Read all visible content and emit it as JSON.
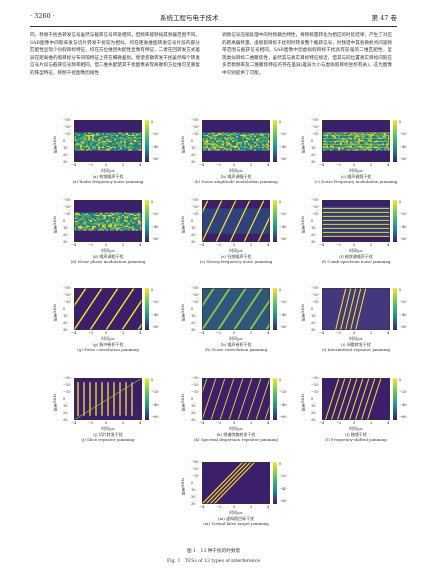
{
  "header": {
    "page": "· 3260 ·",
    "journal": "系统工程与电子技术",
    "volume": "第 47 卷"
  },
  "body_text": {
    "left": "同，移频干扰各转发信号虽然与截获信号带宽相同，但频率能够按其频偏范围不同。SAR图像中间歇采发与切片转发干扰较为相似，均在距离维图转发信号片段的部分匹配性呈现少份假目标特征，均在方位维因失配性显像有特征，二者在回转发方式差异在距离维的假目标分布间隔特征上存在细微差别。频谱弥散转发干扰虽然每个转发信号片段与截获信号频率相同，但二维失配使其干扰图像表现离散和方位维可见重复的阵型特征，移频干扰图像因线性",
    "right": "调频信号压缩处理中的时频耦合特性，将移频量转化为相应的时延结果，产生了对应的距离偏移量。虚假假目标干扰则时转发整个截获信号，时频谱中其各微射点间波频带范围与截获信号相同。SAR图像中因虚拟假目标干扰具有较强的二维匹配性，呈现类似目标二维聚焦性，虽然其与真实目标特征接近，但其与同位置真实目标间就在多普勒频率及二维聚焦特征的存在差异(差异大小与虚拟假目标坐标有关)，这为图像中识别提供了可能。"
  },
  "figure": {
    "ylabel": "频率/MHz",
    "xlabel": "时间/μs",
    "yticks": [
      "−30",
      "−20",
      "−10",
      "0",
      "10",
      "20",
      "30"
    ],
    "xticks": [
      "−4",
      "−2",
      "0",
      "2",
      "4"
    ],
    "cticks": [
      "0",
      "−20",
      "−40",
      "−60"
    ],
    "panels": [
      {
        "zh": "(a) 射频噪声干扰",
        "en": "(a) Radio frequency noise jamming",
        "pattern": "noise"
      },
      {
        "zh": "(b) 噪声调幅干扰",
        "en": "(b) Noise amplitude modulation jamming",
        "pattern": "noise"
      },
      {
        "zh": "(c) 噪声调频干扰",
        "en": "(c) Noise frequency modulation jamming",
        "pattern": "noise_fm"
      },
      {
        "zh": "(d) 噪声调相干扰",
        "en": "(d) Noise phase modulation jamming",
        "pattern": "noise"
      },
      {
        "zh": "(e) 扫频噪声干扰",
        "en": "(e) Sweep frequency noise jamming",
        "pattern": "sweep"
      },
      {
        "zh": "(f) 梳状谱噪声干扰",
        "en": "(f) Comb spectrum noise jamming",
        "pattern": "comb"
      },
      {
        "zh": "(g) 脉冲卷积干扰",
        "en": "(g) Pulse convolution jamming",
        "pattern": "pulse"
      },
      {
        "zh": "(h) 噪声卷积干扰",
        "en": "(h) Noise convolution jamming",
        "pattern": "noiseconv"
      },
      {
        "zh": "(i) 间歇转发干扰",
        "en": "(i) Intermittent repeater jamming",
        "pattern": "intermittent"
      },
      {
        "zh": "(j) 切片转发干扰",
        "en": "(j) Slice repeater jamming",
        "pattern": "slice"
      },
      {
        "zh": "(k) 频谱弥散转发干扰",
        "en": "(k) Spectral dispersion repeater jamming",
        "pattern": "dispersion"
      },
      {
        "zh": "(l) 移频干扰",
        "en": "(l) Frequency-shifted jamming",
        "pattern": "shifted"
      },
      {
        "zh": "(m) 虚拟假目标干扰",
        "en": "(m) Virtual false target jamming",
        "pattern": "virtual"
      }
    ],
    "caption_zh": "图 1　13 种干扰的时频谱",
    "caption_en": "Fig. 1　TFSs of 13 types of interference"
  },
  "colors": {
    "bg_low": "#3b1f6b",
    "mid": "#21908c",
    "high": "#fde725",
    "accent": "#2c7fb8"
  }
}
